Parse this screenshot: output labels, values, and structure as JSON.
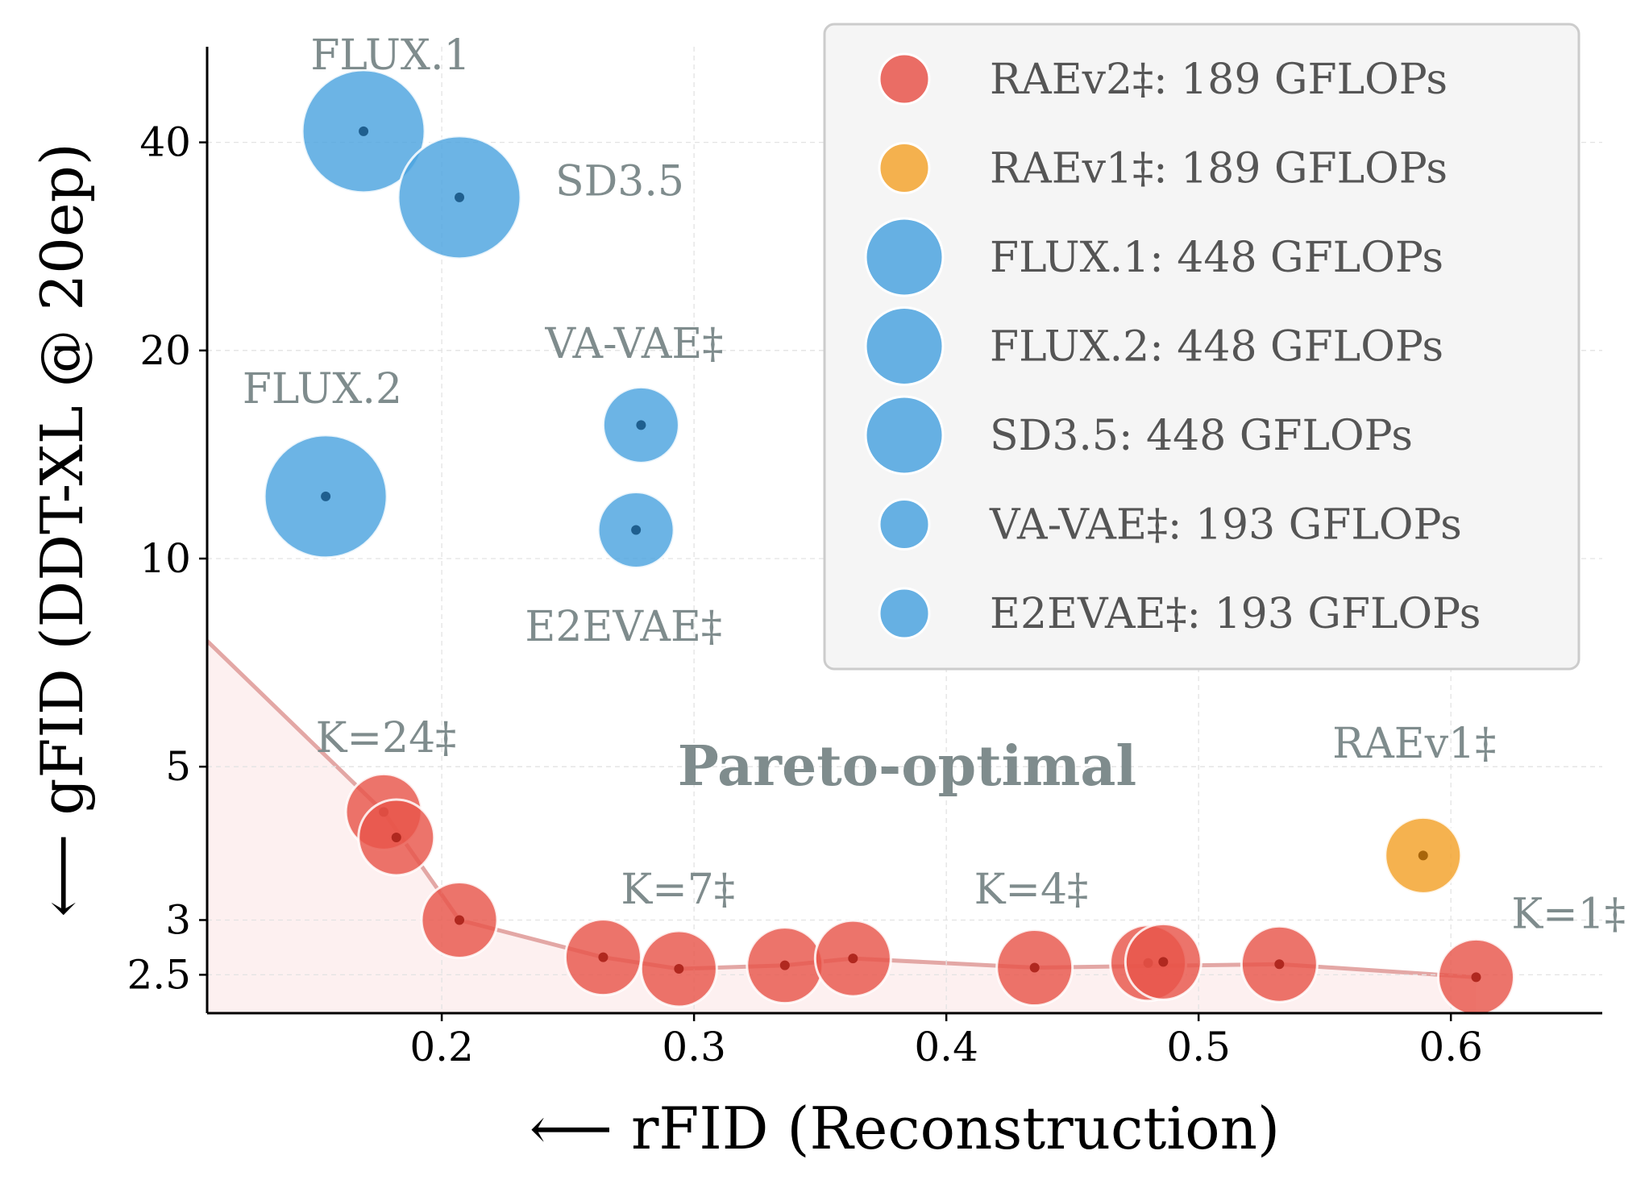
{
  "chart_data": {
    "type": "scatter",
    "title": "",
    "xlabel": "⟵ rFID (Reconstruction)",
    "ylabel": "⟵ gFID (DDT-XL @ 20ep)",
    "xlim": [
      0.107,
      0.66
    ],
    "ylim": [
      2.2,
      55
    ],
    "yscale": "log",
    "x_ticks": [
      {
        "value": 0.2,
        "label": "0.2"
      },
      {
        "value": 0.3,
        "label": "0.3"
      },
      {
        "value": 0.4,
        "label": "0.4"
      },
      {
        "value": 0.5,
        "label": "0.5"
      },
      {
        "value": 0.6,
        "label": "0.6"
      }
    ],
    "y_ticks": [
      {
        "value": 2.5,
        "label": "2.5"
      },
      {
        "value": 3,
        "label": "3"
      },
      {
        "value": 5,
        "label": "5"
      },
      {
        "value": 10,
        "label": "10"
      },
      {
        "value": 20,
        "label": "20"
      },
      {
        "value": 40,
        "label": "40"
      }
    ],
    "grid": true,
    "legend_position": "top-right",
    "colors": {
      "raev2": "#e8554b",
      "raev1": "#f3a530",
      "blue": "#4ca3df",
      "frontier_line": "#e3a7a5",
      "frontier_fill": "#fdf0f0",
      "annotation": "#7f8c8d"
    },
    "series": [
      {
        "name": "RAEv2‡: 189 GFLOPs",
        "key": "raev2",
        "gflops": 189,
        "points": [
          {
            "x": 0.177,
            "y": 4.3
          },
          {
            "x": 0.182,
            "y": 3.95
          },
          {
            "x": 0.207,
            "y": 3.0
          },
          {
            "x": 0.264,
            "y": 2.65
          },
          {
            "x": 0.294,
            "y": 2.55
          },
          {
            "x": 0.336,
            "y": 2.58
          },
          {
            "x": 0.363,
            "y": 2.64
          },
          {
            "x": 0.435,
            "y": 2.56
          },
          {
            "x": 0.48,
            "y": 2.6
          },
          {
            "x": 0.486,
            "y": 2.61
          },
          {
            "x": 0.532,
            "y": 2.59
          },
          {
            "x": 0.61,
            "y": 2.48
          }
        ]
      },
      {
        "name": "RAEv1‡: 189 GFLOPs",
        "key": "raev1",
        "gflops": 189,
        "points": [
          {
            "x": 0.589,
            "y": 3.72
          }
        ]
      },
      {
        "name": "FLUX.1: 448 GFLOPs",
        "key": "flux1",
        "gflops": 448,
        "points": [
          {
            "x": 0.169,
            "y": 41.5
          }
        ]
      },
      {
        "name": "FLUX.2: 448 GFLOPs",
        "key": "flux2",
        "gflops": 448,
        "points": [
          {
            "x": 0.154,
            "y": 12.3
          }
        ]
      },
      {
        "name": "SD3.5: 448 GFLOPs",
        "key": "sd35",
        "gflops": 448,
        "points": [
          {
            "x": 0.207,
            "y": 33.3
          }
        ]
      },
      {
        "name": "VA-VAE‡: 193 GFLOPs",
        "key": "vavae",
        "gflops": 193,
        "points": [
          {
            "x": 0.279,
            "y": 15.6
          }
        ]
      },
      {
        "name": "E2EVAE‡: 193 GFLOPs",
        "key": "e2evae",
        "gflops": 193,
        "points": [
          {
            "x": 0.277,
            "y": 11.0
          }
        ]
      }
    ],
    "pareto_frontier": [
      {
        "x": 0.107,
        "y": 7.6
      },
      {
        "x": 0.177,
        "y": 4.3
      },
      {
        "x": 0.207,
        "y": 3.0
      },
      {
        "x": 0.264,
        "y": 2.65
      },
      {
        "x": 0.294,
        "y": 2.55
      },
      {
        "x": 0.336,
        "y": 2.58
      },
      {
        "x": 0.363,
        "y": 2.64
      },
      {
        "x": 0.435,
        "y": 2.56
      },
      {
        "x": 0.532,
        "y": 2.59
      },
      {
        "x": 0.61,
        "y": 2.48
      }
    ],
    "annotations": [
      {
        "text": "FLUX.1",
        "x": 0.148,
        "y": 51,
        "anchor": "start",
        "bold": false
      },
      {
        "text": "SD3.5",
        "x": 0.245,
        "y": 33.5,
        "anchor": "start",
        "bold": false
      },
      {
        "text": "VA-VAE‡",
        "x": 0.241,
        "y": 19.5,
        "anchor": "start",
        "bold": false
      },
      {
        "text": "FLUX.2",
        "x": 0.121,
        "y": 16.8,
        "anchor": "start",
        "bold": false
      },
      {
        "text": "E2EVAE‡",
        "x": 0.233,
        "y": 7.6,
        "anchor": "start",
        "bold": false
      },
      {
        "text": "K=24‡",
        "x": 0.15,
        "y": 5.25,
        "anchor": "start",
        "bold": false
      },
      {
        "text": "Pareto-optimal",
        "x": 0.2935,
        "y": 4.7,
        "anchor": "start",
        "bold": true
      },
      {
        "text": "RAEv1‡",
        "x": 0.553,
        "y": 5.15,
        "anchor": "start",
        "bold": false
      },
      {
        "text": "K=7‡",
        "x": 0.271,
        "y": 3.17,
        "anchor": "start",
        "bold": false
      },
      {
        "text": "K=4‡",
        "x": 0.411,
        "y": 3.17,
        "anchor": "start",
        "bold": false
      },
      {
        "text": "K=1‡",
        "x": 0.624,
        "y": 2.92,
        "anchor": "start",
        "bold": false
      }
    ]
  }
}
